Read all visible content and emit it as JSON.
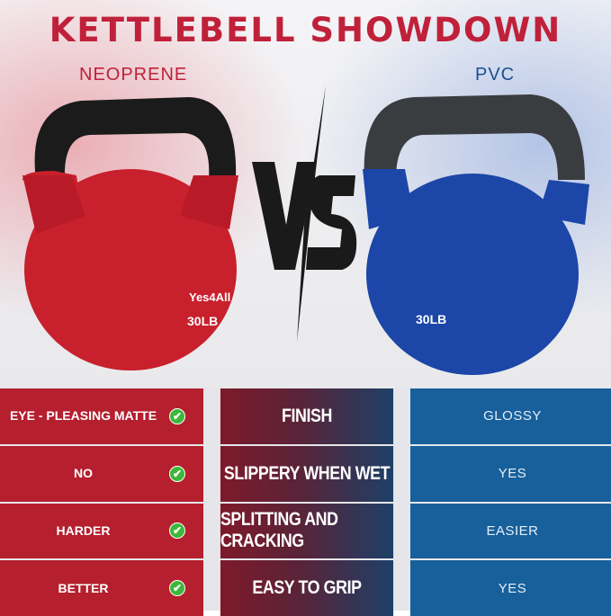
{
  "title": "KETTLEBELL SHOWDOWN",
  "left_label": "NEOPRENE",
  "right_label": "PVC",
  "vs": "VS",
  "left_kettlebell": {
    "brand": "Yes4All",
    "weight": "30LB",
    "color": "#c8202c"
  },
  "right_kettlebell": {
    "weight": "30LB",
    "color": "#1c46a8"
  },
  "rows": [
    {
      "neoprene": "EYE - PLEASING MATTE",
      "feature": "FINISH",
      "pvc": "GLOSSY"
    },
    {
      "neoprene": "NO",
      "feature": "SLIPPERY WHEN WET",
      "pvc": "YES"
    },
    {
      "neoprene": "HARDER",
      "feature": "SPLITTING AND CRACKING",
      "pvc": "EASIER"
    },
    {
      "neoprene": "BETTER",
      "feature": "EASY TO GRIP",
      "pvc": "YES"
    }
  ],
  "colors": {
    "red": "#b51f2e",
    "blue": "#17609c",
    "check": "#3db83a"
  }
}
